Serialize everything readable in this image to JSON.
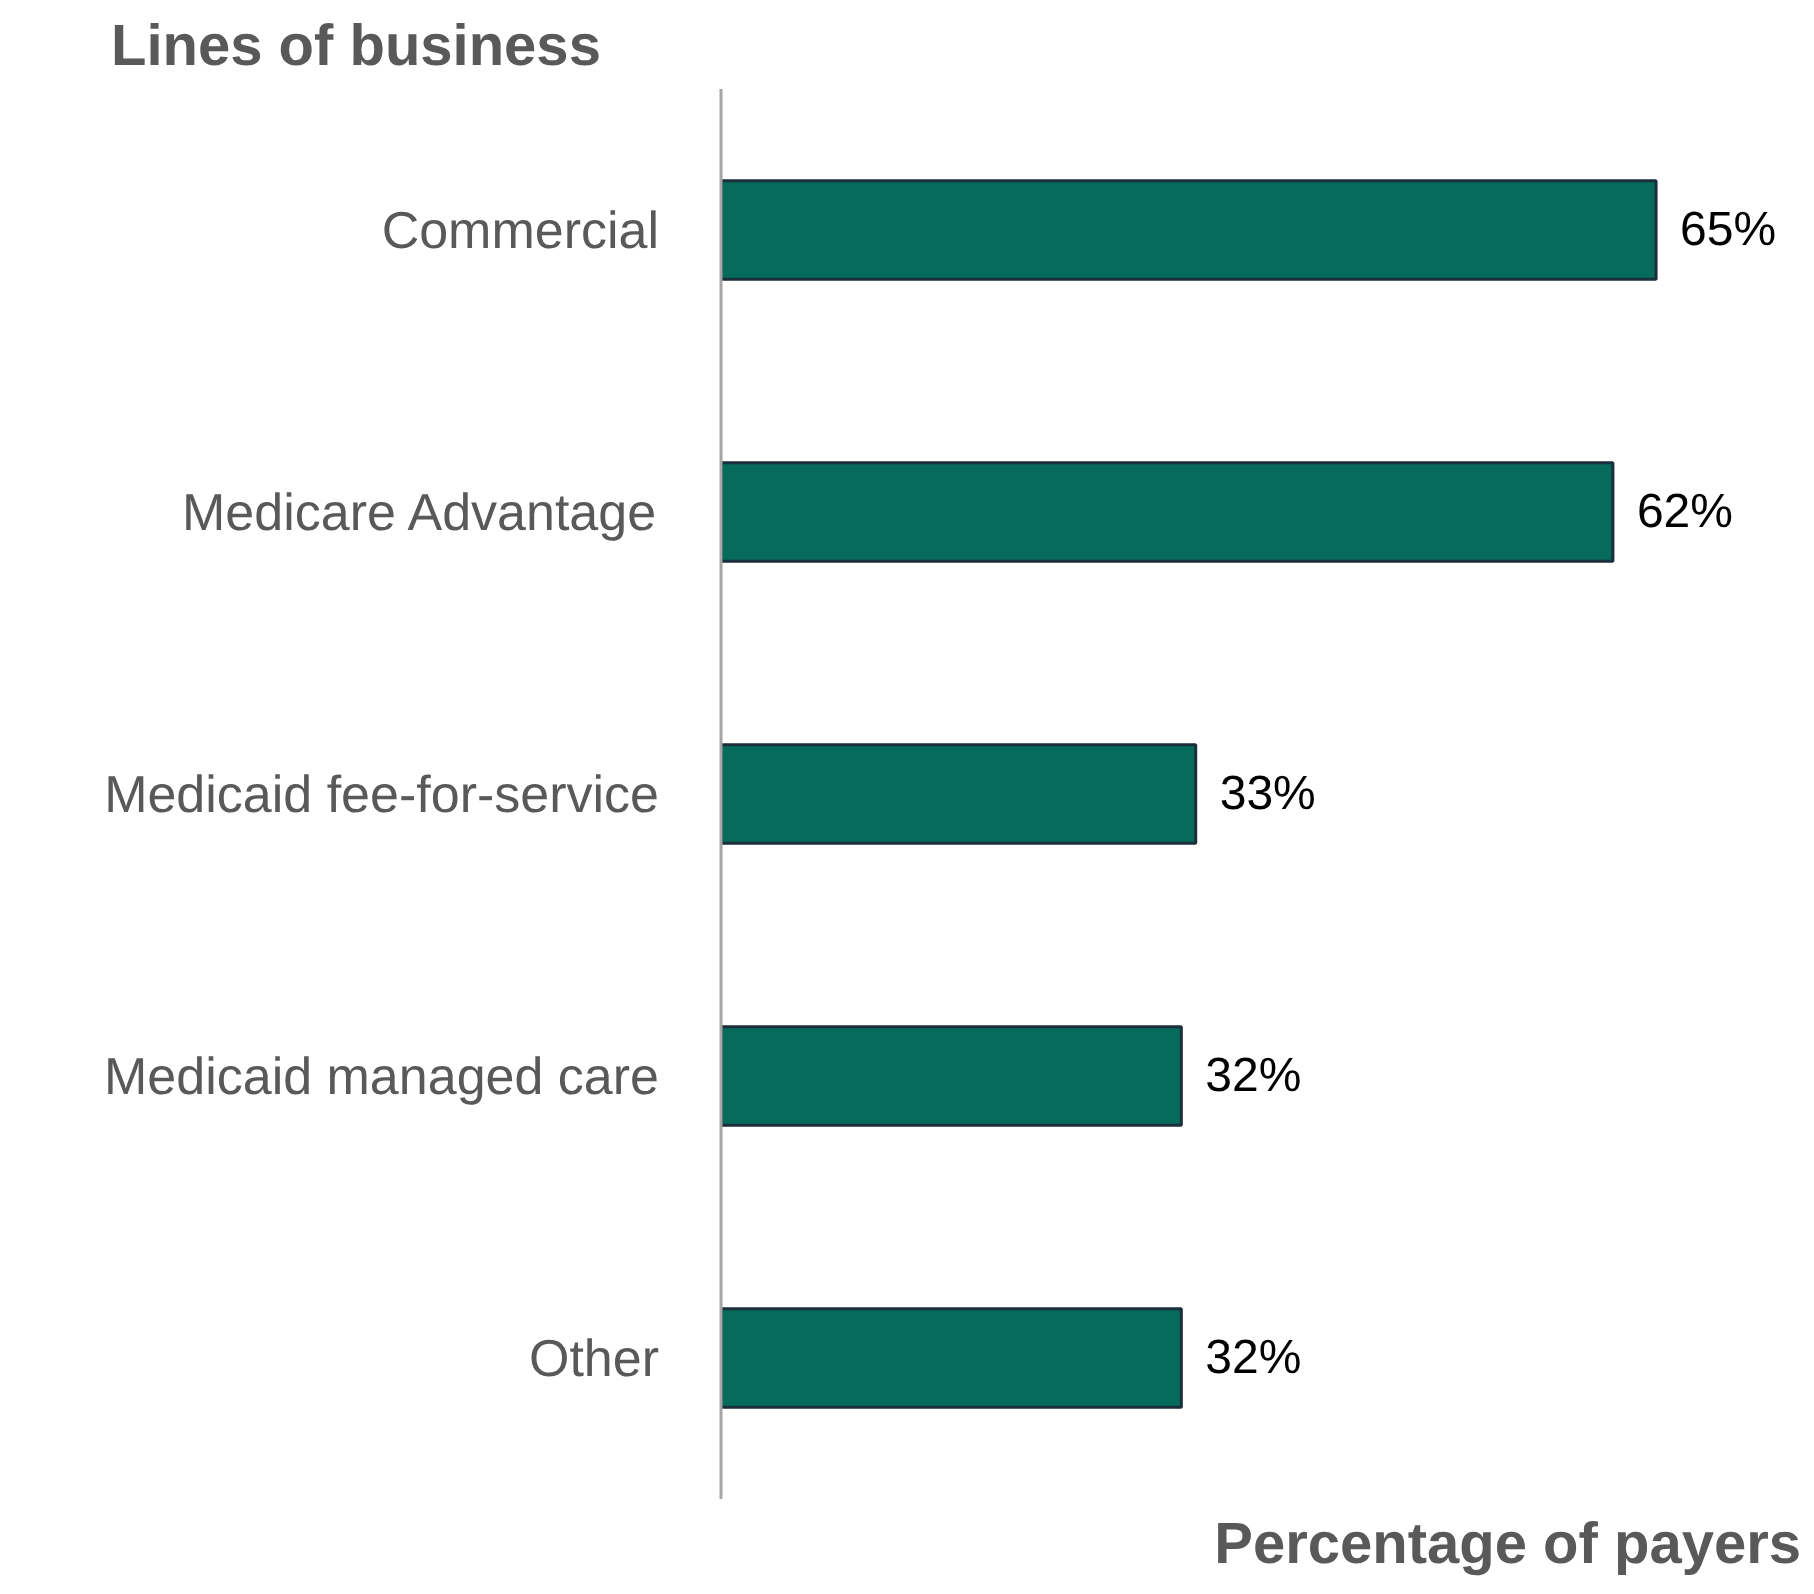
{
  "chart_data": {
    "type": "bar",
    "orientation": "horizontal",
    "ylabel": "Lines of business",
    "xlabel": "Percentage of payers",
    "categories": [
      "Commercial",
      "Medicare Advantage",
      "Medicaid fee-for-service",
      "Medicaid managed care",
      "Other"
    ],
    "values": [
      65,
      62,
      33,
      32,
      32
    ],
    "value_labels": [
      "65%",
      "62%",
      "33%",
      "32%",
      "32%"
    ],
    "color": "#076b5c",
    "tick_labels": "y",
    "grid": false
  }
}
